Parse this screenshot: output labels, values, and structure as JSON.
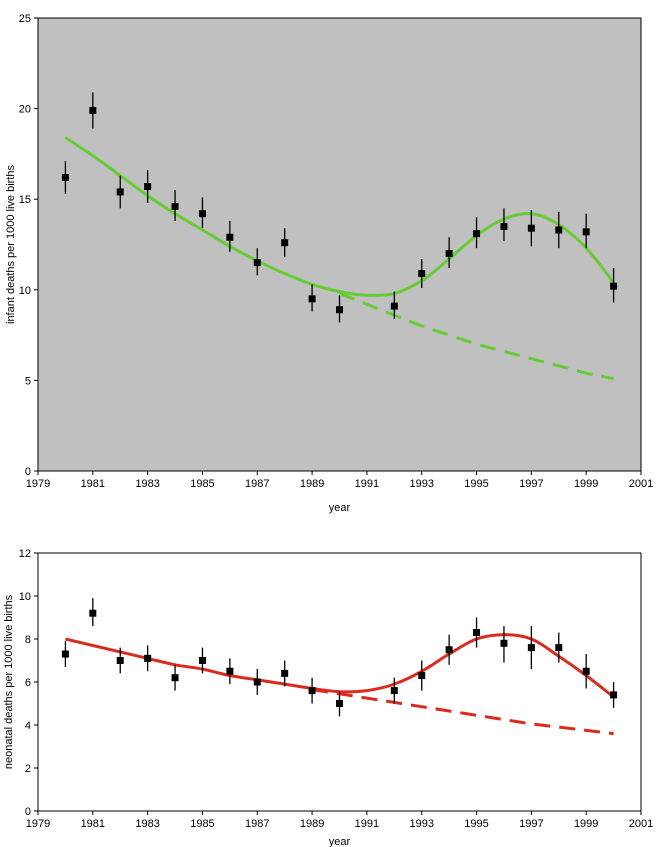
{
  "chart_data": [
    {
      "type": "scatter",
      "title": "",
      "xlabel": "year",
      "ylabel": "infant deaths per 1000 live births",
      "xlim": [
        1979,
        2001
      ],
      "ylim": [
        0,
        25
      ],
      "x_ticks": [
        1979,
        1981,
        1983,
        1985,
        1987,
        1989,
        1991,
        1993,
        1995,
        1997,
        1999,
        2001
      ],
      "y_ticks": [
        0,
        5,
        10,
        15,
        20,
        25
      ],
      "x_tick_labels": [
        "1979",
        "1981",
        "1983",
        "1985",
        "1987",
        "1989",
        "1991",
        "1993",
        "1995",
        "1997",
        "1999",
        "2001"
      ],
      "y_tick_labels": [
        "0",
        "5",
        "10",
        "15",
        "20",
        "25"
      ],
      "plot_background": "#c0c0c0",
      "grid": false,
      "legend": "none",
      "points": {
        "x": [
          1980,
          1981,
          1982,
          1983,
          1984,
          1985,
          1986,
          1987,
          1988,
          1989,
          1990,
          1992,
          1993,
          1994,
          1995,
          1996,
          1997,
          1998,
          1999,
          2000
        ],
        "y": [
          16.2,
          19.9,
          15.4,
          15.7,
          14.6,
          14.2,
          12.9,
          11.5,
          12.6,
          9.5,
          8.9,
          9.1,
          10.9,
          12.0,
          13.1,
          13.5,
          13.4,
          13.3,
          13.2,
          10.2
        ],
        "err_low": [
          15.3,
          18.9,
          14.5,
          14.8,
          13.8,
          13.4,
          12.1,
          10.8,
          11.8,
          8.8,
          8.2,
          8.4,
          10.1,
          11.2,
          12.3,
          12.7,
          12.4,
          12.3,
          12.3,
          9.3
        ],
        "err_high": [
          17.1,
          20.9,
          16.3,
          16.6,
          15.5,
          15.1,
          13.8,
          12.3,
          13.4,
          10.3,
          9.7,
          9.9,
          11.7,
          12.9,
          14.0,
          14.5,
          14.4,
          14.3,
          14.2,
          11.2
        ]
      },
      "fit_line": {
        "color": "#66cc33",
        "x": [
          1980,
          1981,
          1982,
          1983,
          1984,
          1985,
          1986,
          1987,
          1988,
          1989,
          1990,
          1991,
          1992,
          1993,
          1994,
          1995,
          1996,
          1997,
          1998,
          1999,
          2000
        ],
        "y": [
          18.4,
          17.4,
          16.3,
          15.2,
          14.2,
          13.3,
          12.4,
          11.6,
          10.9,
          10.3,
          9.9,
          9.7,
          9.8,
          10.5,
          11.7,
          13.0,
          13.9,
          14.2,
          13.6,
          12.3,
          10.4
        ]
      },
      "baseline_line": {
        "color": "#66cc33",
        "style": "dashed",
        "x": [
          1990,
          1991,
          1992,
          1993,
          1994,
          1995,
          1996,
          1997,
          1998,
          1999,
          2000
        ],
        "y": [
          9.8,
          9.2,
          8.6,
          8.0,
          7.5,
          7.0,
          6.6,
          6.2,
          5.8,
          5.4,
          5.1
        ]
      }
    },
    {
      "type": "scatter",
      "title": "",
      "xlabel": "year",
      "ylabel": "neonatal deaths per 1000 live births",
      "xlim": [
        1979,
        2001
      ],
      "ylim": [
        0,
        12
      ],
      "x_ticks": [
        1979,
        1981,
        1983,
        1985,
        1987,
        1989,
        1991,
        1993,
        1995,
        1997,
        1999,
        2001
      ],
      "y_ticks": [
        0,
        2,
        4,
        6,
        8,
        10,
        12
      ],
      "x_tick_labels": [
        "1979",
        "1981",
        "1983",
        "1985",
        "1987",
        "1989",
        "1991",
        "1993",
        "1995",
        "1997",
        "1999",
        "2001"
      ],
      "y_tick_labels": [
        "0",
        "2",
        "4",
        "6",
        "8",
        "10",
        "12"
      ],
      "plot_background": "#ffffff",
      "grid": false,
      "legend": "none",
      "points": {
        "x": [
          1980,
          1981,
          1982,
          1983,
          1984,
          1985,
          1986,
          1987,
          1988,
          1989,
          1990,
          1992,
          1993,
          1994,
          1995,
          1996,
          1997,
          1998,
          1999,
          2000
        ],
        "y": [
          7.3,
          9.2,
          7.0,
          7.1,
          6.2,
          7.0,
          6.5,
          6.0,
          6.4,
          5.6,
          5.0,
          5.6,
          6.3,
          7.5,
          8.3,
          7.8,
          7.6,
          7.6,
          6.5,
          5.4
        ],
        "err_low": [
          6.7,
          8.6,
          6.4,
          6.5,
          5.6,
          6.4,
          5.9,
          5.4,
          5.8,
          5.0,
          4.4,
          5.0,
          5.6,
          6.8,
          7.6,
          6.9,
          6.6,
          6.9,
          5.7,
          4.8
        ],
        "err_high": [
          7.9,
          9.9,
          7.6,
          7.7,
          6.8,
          7.6,
          7.1,
          6.6,
          7.0,
          6.2,
          5.6,
          6.2,
          7.0,
          8.2,
          9.0,
          8.6,
          8.6,
          8.3,
          7.3,
          6.0
        ]
      },
      "fit_line": {
        "color": "#dd2a1e",
        "x": [
          1980,
          1981,
          1982,
          1983,
          1984,
          1985,
          1986,
          1987,
          1988,
          1989,
          1990,
          1991,
          1992,
          1993,
          1994,
          1995,
          1996,
          1997,
          1998,
          1999,
          2000
        ],
        "y": [
          8.0,
          7.7,
          7.4,
          7.1,
          6.8,
          6.6,
          6.3,
          6.1,
          5.9,
          5.7,
          5.55,
          5.6,
          5.9,
          6.5,
          7.3,
          8.0,
          8.2,
          8.0,
          7.2,
          6.3,
          5.3
        ]
      },
      "baseline_line": {
        "color": "#dd2a1e",
        "style": "dashed",
        "x": [
          1989,
          1990,
          1991,
          1992,
          1993,
          1994,
          1995,
          1996,
          1997,
          1998,
          1999,
          2000
        ],
        "y": [
          5.65,
          5.45,
          5.25,
          5.05,
          4.85,
          4.65,
          4.45,
          4.25,
          4.05,
          3.9,
          3.75,
          3.6
        ]
      }
    }
  ]
}
